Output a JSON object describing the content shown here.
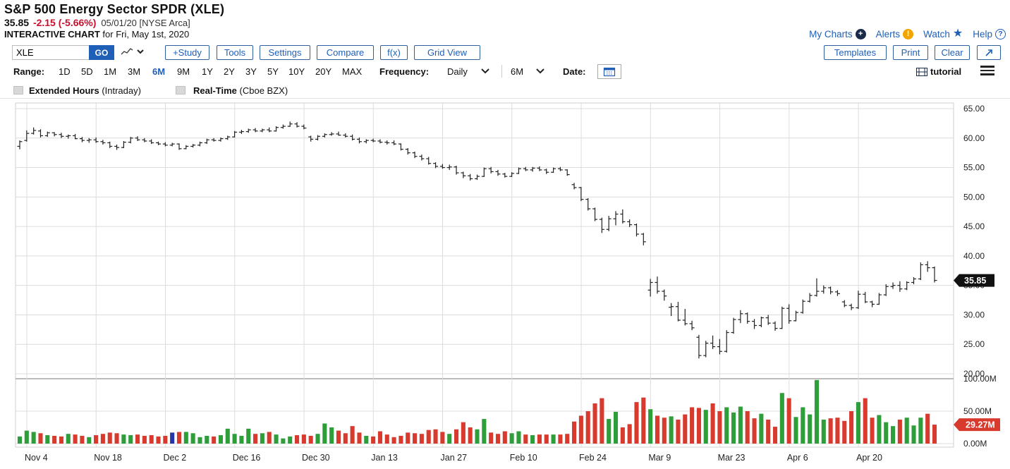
{
  "header": {
    "title": "S&P 500 Energy Sector SPDR (XLE)",
    "last": "35.85",
    "change": "-2.15 (-5.66%)",
    "date_exchange": "05/01/20 [NYSE Arca]",
    "subtitle_bold": "INTERACTIVE CHART",
    "subtitle_rest": "for Fri, May 1st, 2020"
  },
  "toplinks": {
    "my_charts": "My Charts",
    "alerts": "Alerts",
    "watch": "Watch",
    "help": "Help",
    "plus_icon": "plus-circle-icon",
    "alert_icon": "alert-icon",
    "star_icon": "star-icon",
    "help_icon": "question-circle-icon"
  },
  "toolbar": {
    "symbol_value": "XLE",
    "go": "GO",
    "buttons": {
      "study": "+Study",
      "tools": "Tools",
      "settings": "Settings",
      "compare": "Compare",
      "fx": "f(x)",
      "grid_view": "Grid View",
      "templates": "Templates",
      "print": "Print",
      "clear": "Clear"
    }
  },
  "rangebar": {
    "label": "Range:",
    "ranges": [
      "1D",
      "5D",
      "1M",
      "3M",
      "6M",
      "9M",
      "1Y",
      "2Y",
      "3Y",
      "5Y",
      "10Y",
      "20Y",
      "MAX"
    ],
    "active": "6M",
    "frequency_label": "Frequency:",
    "frequency_value": "Daily",
    "period_value": "6M",
    "date_label": "Date:",
    "tutorial": "tutorial"
  },
  "options": {
    "extended_label": "Extended Hours",
    "extended_sub": "(Intraday)",
    "realtime_label": "Real-Time",
    "realtime_sub": "(Cboe BZX)"
  },
  "chart_data": {
    "type": "ohlc-bar-with-volume",
    "price_ticks": [
      "65.00",
      "60.00",
      "55.00",
      "50.00",
      "45.00",
      "40.00",
      "35.00",
      "30.00",
      "25.00",
      "20.00"
    ],
    "price_ylim": [
      20,
      65
    ],
    "volume_ticks": [
      "100.00M",
      "50.00M",
      "0.00M"
    ],
    "volume_ylim": [
      0,
      100
    ],
    "last_price_label": "35.85",
    "last_volume_label": "29.27M",
    "x_labels": [
      "Nov 4",
      "Nov 18",
      "Dec 2",
      "Dec 16",
      "Dec 30",
      "Jan 13",
      "Jan 27",
      "Feb 10",
      "Feb 24",
      "Mar 9",
      "Mar 23",
      "Apr 6",
      "Apr 20"
    ],
    "colors": {
      "up": "#2e9e3a",
      "down": "#d93a2e",
      "flat": "#2436a8",
      "label_bg": "#111111",
      "vol_label_bg": "#d93a2e"
    },
    "bars": [
      {
        "o": 58.6,
        "h": 59.6,
        "l": 58.1,
        "c": 59.4,
        "v": 11
      },
      {
        "o": 59.6,
        "h": 61.3,
        "l": 59.4,
        "c": 60.8,
        "v": 20
      },
      {
        "o": 60.8,
        "h": 61.8,
        "l": 60.6,
        "c": 61.3,
        "v": 18
      },
      {
        "o": 61.2,
        "h": 61.5,
        "l": 60.1,
        "c": 60.4,
        "v": 16
      },
      {
        "o": 60.4,
        "h": 61.1,
        "l": 60.2,
        "c": 60.9,
        "v": 13
      },
      {
        "o": 60.9,
        "h": 61.0,
        "l": 60.3,
        "c": 60.6,
        "v": 12
      },
      {
        "o": 60.6,
        "h": 60.9,
        "l": 60.0,
        "c": 60.3,
        "v": 11
      },
      {
        "o": 60.3,
        "h": 60.6,
        "l": 59.9,
        "c": 60.4,
        "v": 15
      },
      {
        "o": 60.4,
        "h": 60.7,
        "l": 59.8,
        "c": 59.9,
        "v": 14
      },
      {
        "o": 59.9,
        "h": 60.2,
        "l": 59.3,
        "c": 59.6,
        "v": 12
      },
      {
        "o": 59.6,
        "h": 60.0,
        "l": 59.2,
        "c": 59.7,
        "v": 10
      },
      {
        "o": 59.7,
        "h": 60.1,
        "l": 59.2,
        "c": 59.4,
        "v": 13
      },
      {
        "o": 59.4,
        "h": 59.7,
        "l": 58.9,
        "c": 59.2,
        "v": 15
      },
      {
        "o": 59.2,
        "h": 59.4,
        "l": 58.3,
        "c": 58.6,
        "v": 17
      },
      {
        "o": 58.6,
        "h": 58.9,
        "l": 58.0,
        "c": 58.4,
        "v": 16
      },
      {
        "o": 58.4,
        "h": 59.5,
        "l": 58.3,
        "c": 59.3,
        "v": 14
      },
      {
        "o": 59.3,
        "h": 60.2,
        "l": 59.1,
        "c": 60.0,
        "v": 13
      },
      {
        "o": 60.0,
        "h": 60.3,
        "l": 59.5,
        "c": 59.7,
        "v": 14
      },
      {
        "o": 59.7,
        "h": 60.0,
        "l": 59.3,
        "c": 59.5,
        "v": 12
      },
      {
        "o": 59.5,
        "h": 59.8,
        "l": 59.0,
        "c": 59.2,
        "v": 13
      },
      {
        "o": 59.2,
        "h": 59.4,
        "l": 58.8,
        "c": 59.0,
        "v": 11
      },
      {
        "o": 59.0,
        "h": 59.3,
        "l": 58.6,
        "c": 58.8,
        "v": 12
      },
      {
        "o": 58.8,
        "h": 59.2,
        "l": 58.6,
        "c": 59.0,
        "v": 17
      },
      {
        "o": 59.0,
        "h": 59.1,
        "l": 58.0,
        "c": 58.2,
        "v": 18
      },
      {
        "o": 58.2,
        "h": 58.8,
        "l": 58.1,
        "c": 58.6,
        "v": 18
      },
      {
        "o": 58.6,
        "h": 59.0,
        "l": 58.4,
        "c": 58.8,
        "v": 16
      },
      {
        "o": 58.8,
        "h": 59.4,
        "l": 58.6,
        "c": 59.2,
        "v": 10
      },
      {
        "o": 59.2,
        "h": 59.9,
        "l": 59.0,
        "c": 59.7,
        "v": 12
      },
      {
        "o": 59.7,
        "h": 60.0,
        "l": 59.4,
        "c": 59.6,
        "v": 11
      },
      {
        "o": 59.6,
        "h": 60.1,
        "l": 59.4,
        "c": 59.9,
        "v": 13
      },
      {
        "o": 59.9,
        "h": 60.4,
        "l": 59.7,
        "c": 60.2,
        "v": 23
      },
      {
        "o": 60.2,
        "h": 61.2,
        "l": 60.1,
        "c": 61.0,
        "v": 15
      },
      {
        "o": 61.0,
        "h": 61.4,
        "l": 60.7,
        "c": 61.1,
        "v": 12
      },
      {
        "o": 61.1,
        "h": 61.6,
        "l": 60.9,
        "c": 61.4,
        "v": 23
      },
      {
        "o": 61.4,
        "h": 61.7,
        "l": 61.0,
        "c": 61.2,
        "v": 15
      },
      {
        "o": 61.2,
        "h": 61.6,
        "l": 61.0,
        "c": 61.4,
        "v": 16
      },
      {
        "o": 61.4,
        "h": 61.8,
        "l": 61.0,
        "c": 61.2,
        "v": 18
      },
      {
        "o": 61.2,
        "h": 62.0,
        "l": 61.1,
        "c": 61.8,
        "v": 14
      },
      {
        "o": 61.8,
        "h": 62.3,
        "l": 61.6,
        "c": 62.0,
        "v": 8
      },
      {
        "o": 62.0,
        "h": 62.8,
        "l": 61.9,
        "c": 62.4,
        "v": 11
      },
      {
        "o": 62.4,
        "h": 62.7,
        "l": 61.8,
        "c": 62.0,
        "v": 13
      },
      {
        "o": 62.0,
        "h": 62.3,
        "l": 61.5,
        "c": 61.7,
        "v": 14
      },
      {
        "o": 60.2,
        "h": 60.4,
        "l": 59.4,
        "c": 59.8,
        "v": 12
      },
      {
        "o": 59.8,
        "h": 60.5,
        "l": 59.6,
        "c": 60.3,
        "v": 15
      },
      {
        "o": 60.3,
        "h": 60.8,
        "l": 60.1,
        "c": 60.6,
        "v": 31
      },
      {
        "o": 60.6,
        "h": 61.0,
        "l": 60.4,
        "c": 60.7,
        "v": 25
      },
      {
        "o": 60.7,
        "h": 61.1,
        "l": 60.4,
        "c": 60.5,
        "v": 20
      },
      {
        "o": 60.5,
        "h": 60.8,
        "l": 60.1,
        "c": 60.3,
        "v": 16
      },
      {
        "o": 60.3,
        "h": 60.6,
        "l": 59.6,
        "c": 59.8,
        "v": 27
      },
      {
        "o": 59.8,
        "h": 60.1,
        "l": 59.1,
        "c": 59.4,
        "v": 17
      },
      {
        "o": 59.4,
        "h": 59.8,
        "l": 59.1,
        "c": 59.6,
        "v": 12
      },
      {
        "o": 59.6,
        "h": 59.9,
        "l": 59.3,
        "c": 59.5,
        "v": 11
      },
      {
        "o": 59.5,
        "h": 59.8,
        "l": 59.1,
        "c": 59.3,
        "v": 19
      },
      {
        "o": 59.3,
        "h": 59.6,
        "l": 58.9,
        "c": 59.2,
        "v": 14
      },
      {
        "o": 59.2,
        "h": 59.6,
        "l": 58.8,
        "c": 59.0,
        "v": 10
      },
      {
        "o": 59.0,
        "h": 59.1,
        "l": 57.9,
        "c": 58.1,
        "v": 12
      },
      {
        "o": 58.1,
        "h": 58.3,
        "l": 57.2,
        "c": 57.5,
        "v": 17
      },
      {
        "o": 57.5,
        "h": 57.7,
        "l": 56.6,
        "c": 56.9,
        "v": 16
      },
      {
        "o": 56.9,
        "h": 57.2,
        "l": 56.2,
        "c": 56.5,
        "v": 15
      },
      {
        "o": 56.5,
        "h": 56.8,
        "l": 55.5,
        "c": 55.7,
        "v": 21
      },
      {
        "o": 55.7,
        "h": 55.9,
        "l": 54.9,
        "c": 55.2,
        "v": 22
      },
      {
        "o": 55.2,
        "h": 55.6,
        "l": 54.8,
        "c": 55.0,
        "v": 18
      },
      {
        "o": 55.0,
        "h": 55.5,
        "l": 54.6,
        "c": 55.1,
        "v": 15
      },
      {
        "o": 55.1,
        "h": 55.3,
        "l": 53.8,
        "c": 54.1,
        "v": 22
      },
      {
        "o": 54.1,
        "h": 54.3,
        "l": 53.2,
        "c": 53.6,
        "v": 33
      },
      {
        "o": 53.6,
        "h": 53.9,
        "l": 52.8,
        "c": 53.1,
        "v": 25
      },
      {
        "o": 53.1,
        "h": 53.8,
        "l": 52.9,
        "c": 53.5,
        "v": 22
      },
      {
        "o": 53.5,
        "h": 55.0,
        "l": 53.4,
        "c": 54.8,
        "v": 38
      },
      {
        "o": 54.8,
        "h": 55.1,
        "l": 54.0,
        "c": 54.3,
        "v": 17
      },
      {
        "o": 54.3,
        "h": 54.6,
        "l": 53.6,
        "c": 53.9,
        "v": 15
      },
      {
        "o": 53.9,
        "h": 54.1,
        "l": 53.3,
        "c": 53.5,
        "v": 19
      },
      {
        "o": 53.5,
        "h": 54.2,
        "l": 53.4,
        "c": 54.0,
        "v": 16
      },
      {
        "o": 54.0,
        "h": 55.0,
        "l": 53.9,
        "c": 54.8,
        "v": 19
      },
      {
        "o": 54.8,
        "h": 55.1,
        "l": 54.4,
        "c": 54.6,
        "v": 14
      },
      {
        "o": 54.6,
        "h": 55.1,
        "l": 54.3,
        "c": 54.9,
        "v": 13
      },
      {
        "o": 54.9,
        "h": 55.2,
        "l": 54.4,
        "c": 54.6,
        "v": 14
      },
      {
        "o": 54.6,
        "h": 54.8,
        "l": 53.9,
        "c": 54.2,
        "v": 14
      },
      {
        "o": 54.2,
        "h": 55.0,
        "l": 54.1,
        "c": 54.8,
        "v": 14
      },
      {
        "o": 54.8,
        "h": 55.1,
        "l": 54.4,
        "c": 54.6,
        "v": 14
      },
      {
        "o": 54.6,
        "h": 54.7,
        "l": 53.6,
        "c": 53.8,
        "v": 15
      },
      {
        "o": 52.1,
        "h": 52.4,
        "l": 51.3,
        "c": 51.6,
        "v": 34
      },
      {
        "o": 51.6,
        "h": 51.7,
        "l": 49.3,
        "c": 49.6,
        "v": 43
      },
      {
        "o": 49.6,
        "h": 49.8,
        "l": 47.7,
        "c": 48.0,
        "v": 50
      },
      {
        "o": 48.0,
        "h": 48.2,
        "l": 45.9,
        "c": 46.2,
        "v": 62
      },
      {
        "o": 46.2,
        "h": 46.5,
        "l": 43.9,
        "c": 44.5,
        "v": 70
      },
      {
        "o": 44.5,
        "h": 46.8,
        "l": 44.2,
        "c": 46.3,
        "v": 38
      },
      {
        "o": 46.3,
        "h": 47.6,
        "l": 45.2,
        "c": 47.1,
        "v": 49
      },
      {
        "o": 47.1,
        "h": 47.9,
        "l": 45.5,
        "c": 45.8,
        "v": 25
      },
      {
        "o": 45.8,
        "h": 46.2,
        "l": 44.9,
        "c": 45.3,
        "v": 30
      },
      {
        "o": 45.3,
        "h": 45.5,
        "l": 43.3,
        "c": 43.7,
        "v": 64
      },
      {
        "o": 43.7,
        "h": 43.9,
        "l": 41.8,
        "c": 42.4,
        "v": 71
      },
      {
        "o": 34.2,
        "h": 36.1,
        "l": 33.1,
        "c": 35.5,
        "v": 53
      },
      {
        "o": 35.5,
        "h": 36.5,
        "l": 33.6,
        "c": 34.0,
        "v": 43
      },
      {
        "o": 34.0,
        "h": 34.3,
        "l": 32.4,
        "c": 33.2,
        "v": 40
      },
      {
        "o": 31.3,
        "h": 32.0,
        "l": 29.8,
        "c": 31.4,
        "v": 42
      },
      {
        "o": 31.4,
        "h": 32.2,
        "l": 28.9,
        "c": 29.1,
        "v": 37
      },
      {
        "o": 29.1,
        "h": 31.0,
        "l": 28.2,
        "c": 28.5,
        "v": 45
      },
      {
        "o": 28.5,
        "h": 29.0,
        "l": 27.4,
        "c": 27.8,
        "v": 56
      },
      {
        "o": 26.2,
        "h": 26.6,
        "l": 22.6,
        "c": 23.1,
        "v": 55
      },
      {
        "o": 23.1,
        "h": 25.6,
        "l": 22.8,
        "c": 25.2,
        "v": 52
      },
      {
        "o": 25.2,
        "h": 26.5,
        "l": 24.2,
        "c": 24.6,
        "v": 62
      },
      {
        "o": 24.6,
        "h": 25.9,
        "l": 23.3,
        "c": 23.8,
        "v": 50
      },
      {
        "o": 23.8,
        "h": 27.4,
        "l": 23.6,
        "c": 27.0,
        "v": 56
      },
      {
        "o": 27.0,
        "h": 29.5,
        "l": 26.8,
        "c": 29.2,
        "v": 48
      },
      {
        "o": 29.2,
        "h": 30.8,
        "l": 28.6,
        "c": 30.2,
        "v": 57
      },
      {
        "o": 30.2,
        "h": 30.4,
        "l": 28.5,
        "c": 28.9,
        "v": 50
      },
      {
        "o": 28.9,
        "h": 29.3,
        "l": 27.6,
        "c": 28.2,
        "v": 39
      },
      {
        "o": 28.2,
        "h": 29.7,
        "l": 27.9,
        "c": 29.5,
        "v": 46
      },
      {
        "o": 29.5,
        "h": 30.0,
        "l": 28.3,
        "c": 28.6,
        "v": 37
      },
      {
        "o": 28.6,
        "h": 28.9,
        "l": 27.3,
        "c": 27.7,
        "v": 26
      },
      {
        "o": 27.7,
        "h": 31.4,
        "l": 27.6,
        "c": 31.1,
        "v": 78
      },
      {
        "o": 31.1,
        "h": 31.8,
        "l": 28.5,
        "c": 29.0,
        "v": 70
      },
      {
        "o": 29.0,
        "h": 30.7,
        "l": 28.9,
        "c": 30.4,
        "v": 41
      },
      {
        "o": 30.4,
        "h": 32.6,
        "l": 30.2,
        "c": 32.3,
        "v": 56
      },
      {
        "o": 32.3,
        "h": 33.7,
        "l": 32.1,
        "c": 33.3,
        "v": 45
      },
      {
        "o": 33.3,
        "h": 36.2,
        "l": 33.1,
        "c": 34.0,
        "v": 98
      },
      {
        "o": 34.0,
        "h": 35.0,
        "l": 33.6,
        "c": 34.6,
        "v": 37
      },
      {
        "o": 34.6,
        "h": 34.8,
        "l": 33.5,
        "c": 33.9,
        "v": 39
      },
      {
        "o": 33.9,
        "h": 34.2,
        "l": 33.2,
        "c": 33.6,
        "v": 40
      },
      {
        "o": 32.2,
        "h": 32.5,
        "l": 31.3,
        "c": 31.6,
        "v": 35
      },
      {
        "o": 31.6,
        "h": 31.9,
        "l": 30.8,
        "c": 31.2,
        "v": 50
      },
      {
        "o": 31.2,
        "h": 34.1,
        "l": 31.0,
        "c": 33.5,
        "v": 64
      },
      {
        "o": 33.5,
        "h": 33.9,
        "l": 32.0,
        "c": 32.2,
        "v": 70
      },
      {
        "o": 32.2,
        "h": 32.4,
        "l": 31.3,
        "c": 31.8,
        "v": 40
      },
      {
        "o": 31.8,
        "h": 33.7,
        "l": 31.7,
        "c": 33.4,
        "v": 44
      },
      {
        "o": 33.4,
        "h": 35.2,
        "l": 33.2,
        "c": 34.8,
        "v": 33
      },
      {
        "o": 34.8,
        "h": 35.5,
        "l": 34.4,
        "c": 35.0,
        "v": 27
      },
      {
        "o": 35.0,
        "h": 35.7,
        "l": 33.9,
        "c": 34.4,
        "v": 37
      },
      {
        "o": 34.4,
        "h": 35.7,
        "l": 34.2,
        "c": 35.5,
        "v": 40
      },
      {
        "o": 35.5,
        "h": 36.4,
        "l": 35.2,
        "c": 36.1,
        "v": 28
      },
      {
        "o": 36.1,
        "h": 38.9,
        "l": 35.9,
        "c": 38.5,
        "v": 40
      },
      {
        "o": 38.5,
        "h": 39.1,
        "l": 37.3,
        "c": 38.0,
        "v": 46
      },
      {
        "o": 38.0,
        "h": 38.2,
        "l": 35.5,
        "c": 35.85,
        "v": 29.27
      }
    ]
  }
}
